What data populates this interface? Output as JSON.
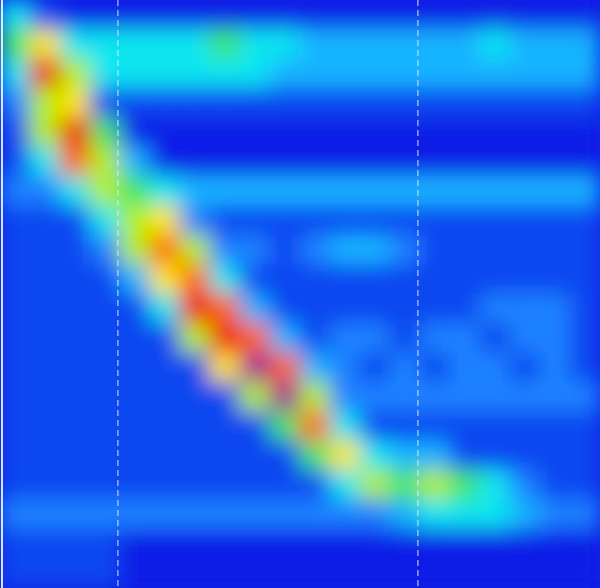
{
  "chart_data": {
    "type": "heatmap",
    "tick_labels": false,
    "xlim": [
      0,
      20
    ],
    "ylim": [
      0,
      20
    ],
    "zlim": [
      0,
      10
    ],
    "x_markers": [
      3.93,
      13.93
    ],
    "z": [
      [
        4,
        1,
        0,
        0,
        0,
        0,
        0,
        0,
        0,
        0,
        0,
        0,
        0,
        0,
        0,
        0,
        0,
        0,
        0,
        0
      ],
      [
        5,
        7,
        4,
        4,
        4,
        4,
        4,
        5,
        4,
        4,
        3,
        3,
        3,
        3,
        3,
        3,
        4,
        3,
        3,
        3
      ],
      [
        4,
        9,
        6,
        4,
        4,
        4,
        4,
        4,
        4,
        3,
        3,
        3,
        3,
        3,
        3,
        3,
        3,
        3,
        3,
        3
      ],
      [
        2,
        6,
        7,
        1,
        1,
        1,
        1,
        1,
        1,
        1,
        1,
        1,
        1,
        1,
        1,
        1,
        1,
        1,
        1,
        1
      ],
      [
        1,
        6,
        9,
        5,
        0,
        0,
        0,
        0,
        0,
        0,
        0,
        0,
        0,
        0,
        0,
        0,
        0,
        0,
        0,
        0
      ],
      [
        1,
        4,
        8,
        6,
        3,
        0,
        0,
        0,
        0,
        0,
        0,
        0,
        0,
        0,
        0,
        0,
        0,
        0,
        0,
        0
      ],
      [
        2,
        2,
        4,
        6,
        5,
        4,
        3,
        3,
        3,
        3,
        3,
        3,
        3,
        3,
        3,
        3,
        3,
        3,
        3,
        3
      ],
      [
        1,
        1,
        1,
        4,
        6,
        7,
        2,
        1,
        1,
        1,
        1,
        1,
        1,
        1,
        1,
        1,
        1,
        1,
        1,
        1
      ],
      [
        1,
        1,
        1,
        2,
        6,
        8,
        6,
        2,
        2,
        1,
        2,
        3,
        3,
        2,
        1,
        1,
        1,
        1,
        1,
        1
      ],
      [
        1,
        1,
        1,
        1,
        3,
        7,
        8,
        4,
        1,
        1,
        1,
        1,
        1,
        1,
        1,
        1,
        1,
        1,
        1,
        1
      ],
      [
        1,
        1,
        1,
        1,
        1,
        4,
        9,
        8,
        3,
        1,
        1,
        1,
        1,
        1,
        1,
        1,
        2,
        2,
        2,
        1
      ],
      [
        1,
        1,
        1,
        1,
        1,
        1,
        6,
        9,
        8,
        3,
        1,
        2,
        2,
        1,
        2,
        2,
        1,
        2,
        2,
        1
      ],
      [
        1,
        1,
        1,
        1,
        1,
        1,
        1,
        7,
        10,
        8,
        3,
        2,
        1,
        2,
        1,
        2,
        2,
        1,
        2,
        1
      ],
      [
        1,
        1,
        1,
        1,
        1,
        1,
        1,
        1,
        6,
        10,
        6,
        2,
        2,
        2,
        2,
        2,
        2,
        2,
        2,
        2
      ],
      [
        1,
        1,
        1,
        1,
        1,
        1,
        1,
        1,
        1,
        5,
        8,
        4,
        1,
        1,
        1,
        1,
        1,
        1,
        1,
        1
      ],
      [
        1,
        1,
        1,
        1,
        1,
        1,
        1,
        1,
        1,
        1,
        5,
        7,
        4,
        3,
        3,
        1,
        1,
        1,
        1,
        1
      ],
      [
        1,
        1,
        1,
        1,
        1,
        1,
        1,
        1,
        1,
        1,
        1,
        4,
        6,
        5,
        6,
        5,
        4,
        2,
        1,
        1
      ],
      [
        2,
        2,
        2,
        2,
        2,
        2,
        2,
        2,
        2,
        2,
        2,
        2,
        2,
        3,
        4,
        4,
        4,
        3,
        2,
        2
      ],
      [
        1,
        1,
        1,
        1,
        0,
        0,
        0,
        0,
        0,
        0,
        0,
        0,
        0,
        0,
        0,
        0,
        0,
        0,
        0,
        0
      ],
      [
        1,
        1,
        1,
        1,
        0,
        0,
        0,
        0,
        0,
        0,
        0,
        0,
        0,
        0,
        0,
        0,
        0,
        0,
        0,
        0
      ]
    ]
  }
}
